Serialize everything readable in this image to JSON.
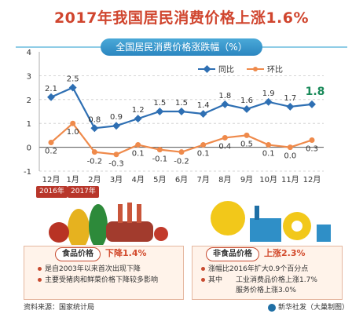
{
  "title": "2017年我国居民消费价格上涨1.6%",
  "subtitle": "全国居民消费价格涨跌幅（%）",
  "chart_data": {
    "type": "line",
    "categories": [
      "12月",
      "1月",
      "2月",
      "3月",
      "4月",
      "5月",
      "6月",
      "7月",
      "8月",
      "9月",
      "10月",
      "11月",
      "12月"
    ],
    "series": [
      {
        "name": "同比",
        "color": "#2e6fb3",
        "values": [
          2.1,
          2.5,
          0.8,
          0.9,
          1.2,
          1.5,
          1.5,
          1.4,
          1.8,
          1.6,
          1.9,
          1.7,
          1.8
        ]
      },
      {
        "name": "环比",
        "color": "#ef8a4b",
        "values": [
          0.2,
          1.0,
          -0.2,
          -0.3,
          0.1,
          -0.1,
          -0.2,
          0.1,
          0.4,
          0.5,
          0.1,
          0.0,
          0.3
        ]
      }
    ],
    "value_labels": {
      "同比": [
        "2.1",
        "2.5",
        "0.8",
        "0.9",
        "1.2",
        "1.5",
        "1.5",
        "1.4",
        "1.8",
        "1.6",
        "1.9",
        "1.7",
        "1.8"
      ],
      "环比": [
        "0.2",
        "1.0",
        "-0.2",
        "-0.3",
        "0.1",
        "-0.1",
        "-0.2",
        "0.1",
        "0.4",
        "0.5",
        "0.1",
        "0.0",
        "0.3"
      ]
    },
    "yticks": [
      "-1",
      "0",
      "1",
      "2",
      "3",
      "4"
    ],
    "ylim": [
      -1,
      4
    ],
    "grid": true,
    "legend_position": "top-right"
  },
  "year_tags": [
    "2016年",
    "2017年"
  ],
  "food": {
    "label": "食品价格",
    "value": "下降1.4%",
    "bullets": [
      "是自2003年以来首次出现下降",
      "主要受猪肉和鲜菜价格下降较多影响"
    ]
  },
  "nonfood": {
    "label": "非食品价格",
    "value": "上涨2.3%",
    "bullets": [
      "涨幅比2016年扩大0.9个百分点",
      "其中",
      "工业消费品价格上涨1.7%",
      "服务价格上涨3.0%"
    ]
  },
  "footer": {
    "source": "资料来源：国家统计局",
    "credit": "新华社发（大巢制图）"
  },
  "colors": {
    "title": "#d0452e",
    "accent": "#c84a2f",
    "line1": "#2e6fb3",
    "line2": "#ef8a4b"
  }
}
